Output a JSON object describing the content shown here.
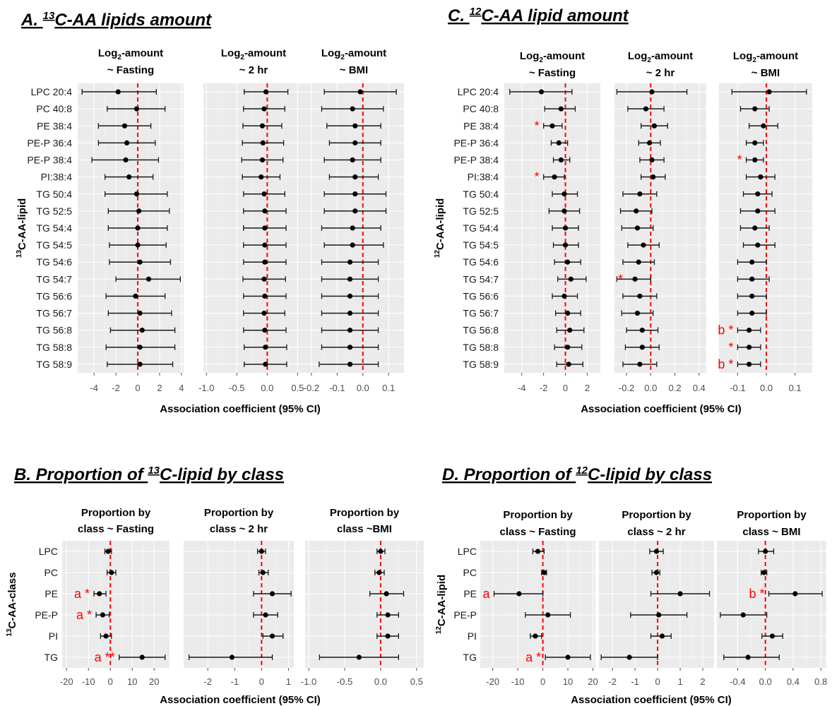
{
  "chart_data": [
    {
      "id": "A",
      "type": "forest",
      "title_parts": [
        "A. ",
        "13",
        "C-AA lipids amount"
      ],
      "ylabel_parts": [
        "13",
        "C-AA-lipid"
      ],
      "xlabel": "Association coefficient (95% CI)",
      "rows": [
        "LPC 20:4",
        "PC 40:8",
        "PE 38:4",
        "PE-P 36:4",
        "PE-P 38:4",
        "PI:38:4",
        "TG 50:4",
        "TG 52:5",
        "TG 54:4",
        "TG 54:5",
        "TG 54:6",
        "TG 54:7",
        "TG 56:6",
        "TG 56:7",
        "TG 56:8",
        "TG 58:8",
        "TG 58:9"
      ],
      "facets": [
        {
          "title_lines": [
            "Log2-amount",
            "~ Fasting"
          ],
          "xlim": [
            -5.5,
            4.2
          ],
          "ticks": [
            -4,
            -2,
            0,
            2,
            4
          ],
          "tick_labels": [
            "-4",
            "-2",
            "0",
            "2",
            "4"
          ],
          "est": [
            -1.8,
            -0.1,
            -1.2,
            -1.0,
            -1.1,
            -0.8,
            -0.1,
            0.1,
            0.0,
            0.0,
            0.2,
            1.0,
            -0.2,
            0.2,
            0.4,
            0.2,
            0.2
          ],
          "lo": [
            -5.1,
            -2.8,
            -3.6,
            -3.6,
            -4.2,
            -3.0,
            -3.0,
            -2.7,
            -2.7,
            -2.6,
            -2.6,
            -2.0,
            -2.9,
            -2.7,
            -2.5,
            -2.9,
            -2.8
          ],
          "hi": [
            1.7,
            2.5,
            1.2,
            1.6,
            1.9,
            1.4,
            2.7,
            2.9,
            2.7,
            2.6,
            3.0,
            3.9,
            2.5,
            3.1,
            3.4,
            3.4,
            3.2
          ],
          "stars": []
        },
        {
          "title_lines": [
            "Log2-amount",
            "~ 2 hr"
          ],
          "xlim": [
            -1.05,
            0.6
          ],
          "ticks": [
            -1.0,
            -0.5,
            0.0,
            0.5
          ],
          "tick_labels": [
            "-1.0",
            "-0.5",
            "0.0",
            "0.5"
          ],
          "est": [
            -0.02,
            -0.05,
            -0.08,
            -0.07,
            -0.08,
            -0.1,
            -0.05,
            -0.04,
            -0.04,
            -0.04,
            -0.04,
            -0.05,
            -0.04,
            -0.05,
            -0.04,
            -0.03,
            -0.03
          ],
          "lo": [
            -0.38,
            -0.39,
            -0.4,
            -0.41,
            -0.42,
            -0.41,
            -0.39,
            -0.39,
            -0.39,
            -0.39,
            -0.39,
            -0.4,
            -0.39,
            -0.39,
            -0.39,
            -0.38,
            -0.38
          ],
          "hi": [
            0.34,
            0.29,
            0.24,
            0.27,
            0.26,
            0.21,
            0.29,
            0.31,
            0.31,
            0.31,
            0.31,
            0.3,
            0.31,
            0.29,
            0.31,
            0.32,
            0.32
          ],
          "stars": []
        },
        {
          "title_lines": [
            "Log2-amount",
            "~ BMI"
          ],
          "xlim": [
            -0.23,
            0.16
          ],
          "ticks": [
            -0.2,
            -0.1,
            0.0,
            0.1
          ],
          "tick_labels": [
            "-0.2",
            "-0.1",
            "0.0",
            "0.1"
          ],
          "est": [
            -0.01,
            -0.04,
            -0.03,
            -0.03,
            -0.04,
            -0.03,
            -0.03,
            -0.03,
            -0.04,
            -0.04,
            -0.05,
            -0.05,
            -0.05,
            -0.05,
            -0.05,
            -0.05,
            -0.05
          ],
          "lo": [
            -0.15,
            -0.16,
            -0.14,
            -0.13,
            -0.15,
            -0.13,
            -0.15,
            -0.15,
            -0.16,
            -0.15,
            -0.16,
            -0.16,
            -0.16,
            -0.16,
            -0.16,
            -0.16,
            -0.17
          ],
          "hi": [
            0.13,
            0.08,
            0.07,
            0.07,
            0.07,
            0.06,
            0.09,
            0.09,
            0.07,
            0.08,
            0.06,
            0.06,
            0.06,
            0.06,
            0.06,
            0.06,
            0.06
          ],
          "stars": []
        }
      ]
    },
    {
      "id": "C",
      "type": "forest",
      "title_parts": [
        "C. ",
        "12",
        "C-AA lipid amount"
      ],
      "ylabel_parts": [
        "12",
        "C-AA-lipid"
      ],
      "xlabel": "Association coefficient (95% CI)",
      "rows": [
        "LPC 20:4",
        "PC 40:8",
        "PE 38:4",
        "PE-P 36:4",
        "PE-P 38:4",
        "PI:38:4",
        "TG 50:4",
        "TG 52:5",
        "TG 54:4",
        "TG 54:5",
        "TG 54:6",
        "TG 54:7",
        "TG 56:6",
        "TG 56:7",
        "TG 56:8",
        "TG 58:8",
        "TG 58:9"
      ],
      "facets": [
        {
          "title_lines": [
            "Log2-amount",
            "~ Fasting"
          ],
          "xlim": [
            -5.6,
            3.2
          ],
          "ticks": [
            -4,
            -2,
            0,
            2
          ],
          "tick_labels": [
            "-4",
            "-2",
            "0",
            "2"
          ],
          "est": [
            -2.2,
            -0.4,
            -1.2,
            -0.6,
            -0.4,
            -1.0,
            -0.1,
            -0.1,
            0.0,
            0.0,
            0.2,
            0.5,
            -0.1,
            0.2,
            0.4,
            0.2,
            0.3
          ],
          "lo": [
            -5.1,
            -1.9,
            -2.0,
            -1.3,
            -1.1,
            -2.0,
            -1.2,
            -1.5,
            -1.2,
            -1.1,
            -1.0,
            -0.7,
            -1.2,
            -0.9,
            -0.8,
            -1.0,
            -0.8
          ],
          "hi": [
            0.6,
            0.9,
            -0.3,
            0.2,
            0.4,
            -0.1,
            1.1,
            1.3,
            1.2,
            1.2,
            1.4,
            1.9,
            1.1,
            1.4,
            1.7,
            1.5,
            1.6
          ],
          "stars": [
            {
              "row": 2,
              "text": "*"
            },
            {
              "row": 5,
              "text": "*"
            }
          ]
        },
        {
          "title_lines": [
            "Log2-amount",
            "~ 2 hr"
          ],
          "xlim": [
            -0.3,
            0.46
          ],
          "ticks": [
            -0.2,
            0.0,
            0.2,
            0.4
          ],
          "tick_labels": [
            "-0.2",
            "0.0",
            "0.2",
            "0.4"
          ],
          "est": [
            0.01,
            -0.04,
            0.03,
            -0.01,
            0.01,
            0.02,
            -0.09,
            -0.12,
            -0.11,
            -0.06,
            -0.1,
            -0.13,
            -0.09,
            -0.11,
            -0.07,
            -0.07,
            -0.09
          ],
          "lo": [
            -0.28,
            -0.19,
            -0.08,
            -0.1,
            -0.09,
            -0.08,
            -0.23,
            -0.25,
            -0.24,
            -0.19,
            -0.23,
            -0.28,
            -0.23,
            -0.24,
            -0.2,
            -0.21,
            -0.23
          ],
          "hi": [
            0.3,
            0.11,
            0.14,
            0.08,
            0.11,
            0.12,
            0.05,
            0.01,
            0.02,
            0.07,
            0.03,
            0.0,
            0.05,
            0.02,
            0.06,
            0.07,
            0.05
          ],
          "stars": [
            {
              "row": 11,
              "text": "*"
            }
          ]
        },
        {
          "title_lines": [
            "Log2-amount",
            "~ BMI"
          ],
          "xlim": [
            -0.165,
            0.16
          ],
          "ticks": [
            -0.1,
            0.0,
            0.1
          ],
          "tick_labels": [
            "-0.1",
            "0.0",
            "0.1"
          ],
          "est": [
            0.01,
            -0.04,
            -0.01,
            -0.04,
            -0.04,
            -0.02,
            -0.03,
            -0.03,
            -0.04,
            -0.03,
            -0.05,
            -0.05,
            -0.05,
            -0.05,
            -0.06,
            -0.06,
            -0.06
          ],
          "lo": [
            -0.12,
            -0.09,
            -0.06,
            -0.07,
            -0.07,
            -0.07,
            -0.08,
            -0.09,
            -0.09,
            -0.08,
            -0.1,
            -0.1,
            -0.1,
            -0.1,
            -0.1,
            -0.1,
            -0.1
          ],
          "hi": [
            0.14,
            0.01,
            0.04,
            -0.01,
            -0.01,
            0.03,
            0.02,
            0.03,
            0.01,
            0.03,
            0.0,
            0.01,
            0.0,
            0.0,
            -0.02,
            -0.02,
            -0.02
          ],
          "stars": [
            {
              "row": 4,
              "text": "*"
            },
            {
              "row": 14,
              "text": "b *"
            },
            {
              "row": 15,
              "text": "*"
            },
            {
              "row": 16,
              "text": "b *"
            }
          ]
        }
      ]
    },
    {
      "id": "B",
      "type": "forest",
      "title_parts": [
        "B. Proportion of  ",
        "13",
        "C-lipid by class"
      ],
      "ylabel_parts": [
        "13",
        "C-AA-class"
      ],
      "xlabel": "Association coefficient (95% CI)",
      "rows": [
        "LPC",
        "PC",
        "PE",
        "PE-P",
        "PI",
        "TG"
      ],
      "facets": [
        {
          "title_lines": [
            "Proportion by",
            "class  ~  Fasting"
          ],
          "xlim": [
            -22,
            27
          ],
          "ticks": [
            -20,
            -10,
            0,
            10,
            20
          ],
          "tick_labels": [
            "-20",
            "-10",
            "0",
            "10",
            "20"
          ],
          "est": [
            -1.0,
            0.5,
            -5.0,
            -3.5,
            -2.0,
            14.5
          ],
          "lo": [
            -2.5,
            -1.5,
            -7.5,
            -6.5,
            -4.5,
            4.0
          ],
          "hi": [
            0.5,
            2.5,
            -2.0,
            -0.5,
            0.5,
            25.0
          ],
          "stars": [
            {
              "row": 2,
              "text": "a *"
            },
            {
              "row": 3,
              "text": "a *"
            },
            {
              "row": 5,
              "text": "a **"
            }
          ]
        },
        {
          "title_lines": [
            "Proportion by",
            "class  ~  2 hr"
          ],
          "xlim": [
            -2.9,
            1.2
          ],
          "ticks": [
            -2,
            -1,
            0,
            1
          ],
          "tick_labels": [
            "-2",
            "-1",
            "0",
            "1"
          ],
          "est": [
            0.0,
            0.05,
            0.4,
            0.15,
            0.4,
            -1.1
          ],
          "lo": [
            -0.15,
            -0.1,
            -0.3,
            -0.3,
            0.05,
            -2.7
          ],
          "hi": [
            0.15,
            0.25,
            1.1,
            0.6,
            0.8,
            0.4
          ],
          "stars": []
        },
        {
          "title_lines": [
            "Proportion by",
            "class  ~BMI"
          ],
          "xlim": [
            -1.05,
            0.6
          ],
          "ticks": [
            -1.0,
            -0.5,
            0.0,
            0.5
          ],
          "tick_labels": [
            "-1.0",
            "-0.5",
            "0.0",
            "0.5"
          ],
          "est": [
            0.0,
            -0.02,
            0.08,
            0.1,
            0.1,
            -0.3
          ],
          "lo": [
            -0.05,
            -0.08,
            -0.15,
            -0.05,
            -0.05,
            -0.85
          ],
          "hi": [
            0.06,
            0.05,
            0.32,
            0.25,
            0.25,
            0.25
          ],
          "stars": []
        }
      ]
    },
    {
      "id": "D",
      "type": "forest",
      "title_parts": [
        "D. Proportion of  ",
        "12",
        "C-lipid by class"
      ],
      "ylabel_parts": [
        "12",
        "C-AA-lipid"
      ],
      "xlabel": "Association coefficient (95% CI)",
      "rows": [
        "LPC",
        "PC",
        "PE",
        "PE-P",
        "PI",
        "TG"
      ],
      "facets": [
        {
          "title_lines": [
            "Proportion by",
            "class  ~  Fasting"
          ],
          "xlim": [
            -25,
            21
          ],
          "ticks": [
            -20,
            -10,
            0,
            10,
            20
          ],
          "tick_labels": [
            "-20",
            "-10",
            "0",
            "10",
            "20"
          ],
          "est": [
            -2.0,
            0.5,
            -9.5,
            2.0,
            -3.0,
            10.0
          ],
          "lo": [
            -4.0,
            -0.5,
            -19.5,
            -7.0,
            -5.0,
            1.0
          ],
          "hi": [
            0.5,
            1.5,
            0.0,
            11.0,
            -0.5,
            19.0
          ],
          "stars": [
            {
              "row": 2,
              "text": "a"
            },
            {
              "row": 5,
              "text": "a *"
            }
          ]
        },
        {
          "title_lines": [
            "Proportion by",
            "class  ~  2 hr"
          ],
          "xlim": [
            -2.6,
            2.5
          ],
          "ticks": [
            -2,
            -1,
            0,
            1,
            2
          ],
          "tick_labels": [
            "-2",
            "-1",
            "0",
            "1",
            "2"
          ],
          "est": [
            -0.05,
            -0.05,
            1.0,
            0.05,
            0.2,
            -1.25
          ],
          "lo": [
            -0.35,
            -0.25,
            -0.3,
            -1.2,
            -0.3,
            -2.5
          ],
          "hi": [
            0.25,
            0.1,
            2.3,
            1.3,
            0.6,
            0.0
          ],
          "stars": []
        },
        {
          "title_lines": [
            "Proportion by",
            "class  ~ BMI"
          ],
          "xlim": [
            -0.7,
            0.88
          ],
          "ticks": [
            -0.4,
            0.0,
            0.4,
            0.8
          ],
          "tick_labels": [
            "-0.4",
            "0.0",
            "0.4",
            "0.8"
          ],
          "est": [
            0.0,
            -0.02,
            0.43,
            -0.32,
            0.1,
            -0.25
          ],
          "lo": [
            -0.1,
            -0.06,
            0.05,
            -0.65,
            -0.05,
            -0.6
          ],
          "hi": [
            0.12,
            0.02,
            0.82,
            0.02,
            0.25,
            0.2
          ],
          "stars": [
            {
              "row": 2,
              "text": "b *"
            }
          ]
        }
      ]
    }
  ]
}
